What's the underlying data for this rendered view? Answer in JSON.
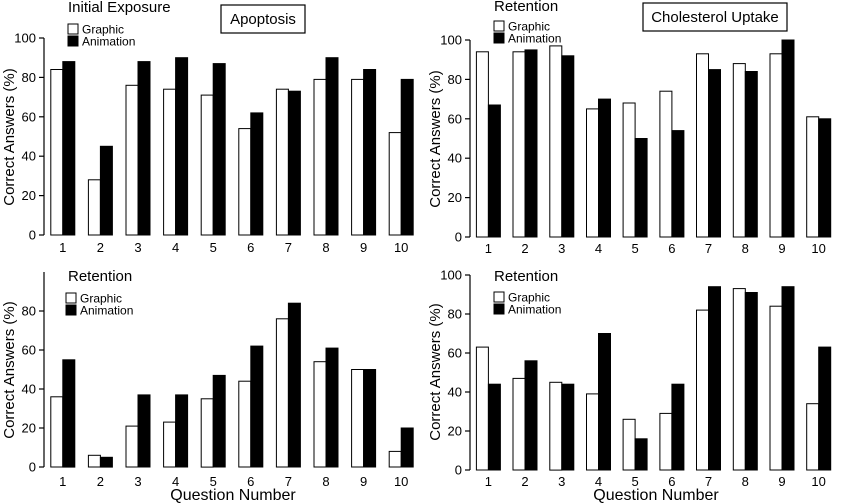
{
  "section_titles": [
    "Apoptosis",
    "Cholesterol Uptake"
  ],
  "xlabel": "Question Number",
  "ylabel": "Correct Answers (%)",
  "legend": [
    "Graphic",
    "Animation"
  ],
  "colors": {
    "graphic": "#ffffff",
    "animation": "#000000",
    "stroke": "#000000"
  },
  "chart_data": [
    {
      "type": "bar",
      "title": "Initial Exposure",
      "section": "Apoptosis",
      "categories": [
        "1",
        "2",
        "3",
        "4",
        "5",
        "6",
        "7",
        "8",
        "9",
        "10"
      ],
      "series": [
        {
          "name": "Graphic",
          "values": [
            84,
            28,
            76,
            74,
            71,
            54,
            74,
            79,
            79,
            52
          ]
        },
        {
          "name": "Animation",
          "values": [
            88,
            45,
            88,
            90,
            87,
            62,
            73,
            90,
            84,
            79
          ]
        }
      ],
      "xlabel": "",
      "ylabel": "Correct Answers (%)",
      "ylim": [
        0,
        100
      ],
      "yticks": [
        0,
        20,
        40,
        60,
        80,
        100
      ],
      "legend": "top-left",
      "grid": false
    },
    {
      "type": "bar",
      "title": "Retention",
      "section": "Cholesterol Uptake",
      "categories": [
        "1",
        "2",
        "3",
        "4",
        "5",
        "6",
        "7",
        "8",
        "9",
        "10"
      ],
      "series": [
        {
          "name": "Graphic",
          "values": [
            94,
            94,
            97,
            65,
            68,
            74,
            93,
            88,
            93,
            61
          ]
        },
        {
          "name": "Animation",
          "values": [
            67,
            95,
            92,
            70,
            50,
            54,
            85,
            84,
            100,
            60
          ]
        }
      ],
      "xlabel": "",
      "ylabel": "Correct Answers (%)",
      "ylim": [
        0,
        100
      ],
      "yticks": [
        0,
        20,
        40,
        60,
        80,
        100
      ],
      "legend": "top-left",
      "grid": false
    },
    {
      "type": "bar",
      "title": "Retention",
      "section": "Apoptosis",
      "categories": [
        "1",
        "2",
        "3",
        "4",
        "5",
        "6",
        "7",
        "8",
        "9",
        "10"
      ],
      "series": [
        {
          "name": "Graphic",
          "values": [
            36,
            6,
            21,
            23,
            35,
            44,
            76,
            54,
            50,
            8
          ]
        },
        {
          "name": "Animation",
          "values": [
            55,
            5,
            37,
            37,
            47,
            62,
            84,
            61,
            50,
            20
          ]
        }
      ],
      "xlabel": "Question Number",
      "ylabel": "Correct Answers (%)",
      "ylim": [
        0,
        100
      ],
      "yticks": [
        0,
        20,
        40,
        60,
        80
      ],
      "legend": "top-left",
      "grid": false
    },
    {
      "type": "bar",
      "title": "Retention",
      "section": "Cholesterol Uptake",
      "categories": [
        "1",
        "2",
        "3",
        "4",
        "5",
        "6",
        "7",
        "8",
        "9",
        "10"
      ],
      "series": [
        {
          "name": "Graphic",
          "values": [
            63,
            47,
            45,
            39,
            26,
            29,
            82,
            93,
            84,
            34
          ]
        },
        {
          "name": "Animation",
          "values": [
            44,
            56,
            44,
            70,
            16,
            44,
            94,
            91,
            94,
            63
          ]
        }
      ],
      "xlabel": "Question Number",
      "ylabel": "Correct Answers (%)",
      "ylim": [
        0,
        100
      ],
      "yticks": [
        0,
        20,
        40,
        60,
        80,
        100
      ],
      "legend": "top-left",
      "grid": false
    }
  ]
}
